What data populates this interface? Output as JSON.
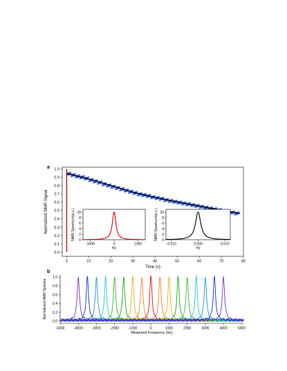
{
  "panel_a": {
    "letter": "a"
  },
  "panel_b": {
    "letter": "b"
  },
  "chart_data": [
    {
      "id": "decay",
      "type": "scatter",
      "xlabel": "Time (s)",
      "ylabel": "Normalized NMR Signal",
      "xlim": [
        -2,
        80
      ],
      "ylim": [
        -0.05,
        1.02
      ],
      "xticks": [
        0,
        10,
        20,
        30,
        40,
        50,
        60,
        70,
        80
      ],
      "yticks": [
        0.0,
        0.1,
        0.2,
        0.3,
        0.4,
        0.5,
        0.6,
        0.7,
        0.8,
        0.9,
        1.0
      ],
      "series": [
        {
          "color": "#1f4fe0",
          "kind": "scatter",
          "points": [
            [
              1,
              0.94
            ],
            [
              3,
              0.925
            ],
            [
              5,
              0.91
            ],
            [
              7,
              0.9
            ],
            [
              9,
              0.885
            ],
            [
              11,
              0.865
            ],
            [
              13,
              0.85
            ],
            [
              15,
              0.835
            ],
            [
              17,
              0.815
            ],
            [
              19,
              0.8
            ],
            [
              21,
              0.785
            ],
            [
              23,
              0.77
            ],
            [
              25,
              0.755
            ],
            [
              27,
              0.74
            ],
            [
              29,
              0.725
            ],
            [
              31,
              0.71
            ],
            [
              33,
              0.695
            ],
            [
              35,
              0.685
            ],
            [
              37,
              0.675
            ],
            [
              39,
              0.66
            ],
            [
              41,
              0.65
            ],
            [
              43,
              0.64
            ],
            [
              45,
              0.625
            ],
            [
              47,
              0.615
            ],
            [
              49,
              0.605
            ],
            [
              51,
              0.595
            ],
            [
              53,
              0.585
            ],
            [
              55,
              0.575
            ],
            [
              57,
              0.565
            ],
            [
              59,
              0.555
            ],
            [
              61,
              0.545
            ],
            [
              63,
              0.535
            ],
            [
              65,
              0.525
            ],
            [
              67,
              0.515
            ],
            [
              69,
              0.505
            ],
            [
              71,
              0.495
            ],
            [
              73,
              0.485
            ],
            [
              75,
              0.475
            ],
            [
              77,
              0.465
            ]
          ]
        },
        {
          "color": "#000000",
          "kind": "fit",
          "points": [
            [
              0,
              0.945
            ],
            [
              5,
              0.912
            ],
            [
              10,
              0.878
            ],
            [
              15,
              0.84
            ],
            [
              20,
              0.8
            ],
            [
              25,
              0.76
            ],
            [
              30,
              0.72
            ],
            [
              35,
              0.688
            ],
            [
              40,
              0.658
            ],
            [
              45,
              0.63
            ],
            [
              50,
              0.603
            ],
            [
              55,
              0.578
            ],
            [
              60,
              0.553
            ],
            [
              65,
              0.528
            ],
            [
              70,
              0.505
            ],
            [
              75,
              0.48
            ],
            [
              78.5,
              0.465
            ]
          ]
        },
        {
          "color": "#e00000",
          "kind": "pulse",
          "x": 0,
          "y": [
            0.0,
            1.0
          ]
        }
      ]
    },
    {
      "id": "inset_red",
      "type": "line",
      "xlabel": "Hz",
      "ylabel": "NMR Spectrum(a.u.)",
      "xlim": [
        -1300,
        1300
      ],
      "ylim": [
        0,
        11
      ],
      "xticks": [
        -1000,
        0,
        1000
      ],
      "yticks": [
        0,
        2,
        4,
        6,
        8,
        10
      ],
      "series": [
        {
          "color": "#e00000",
          "center": 0,
          "width": 90,
          "peak": 10
        }
      ]
    },
    {
      "id": "inset_black",
      "type": "line",
      "xlabel": "Hz",
      "ylabel": "NMR Spectrum(a.u.)",
      "xlim": [
        -0.012,
        0.012
      ],
      "ylim": [
        0,
        11
      ],
      "xticks": [
        -0.01,
        0.0,
        0.01
      ],
      "xticklabels": [
        "-0.010",
        "0.000",
        "0.010"
      ],
      "yticks": [
        0,
        2,
        4,
        6,
        8,
        10
      ],
      "series": [
        {
          "color": "#000000",
          "center": 0,
          "width": 0.0012,
          "peak": 10
        }
      ]
    },
    {
      "id": "spectra",
      "type": "line",
      "xlabel": "Measured Frequency (Hz)",
      "ylabel": "Normalized NMR Spectra",
      "xlim": [
        -5000,
        5100
      ],
      "ylim": [
        -0.05,
        1.05
      ],
      "xticks": [
        -5000,
        -4000,
        -3000,
        -2000,
        -1000,
        0,
        1000,
        2000,
        3000,
        4000,
        5000
      ],
      "yticks": [
        0.0,
        0.2,
        0.4,
        0.6,
        0.8,
        1.0
      ],
      "series": [
        {
          "center": -4000,
          "color": "#7a2fd0"
        },
        {
          "center": -3500,
          "color": "#1230d8"
        },
        {
          "center": -3000,
          "color": "#1e90e8"
        },
        {
          "center": -2500,
          "color": "#20c8d8"
        },
        {
          "center": -2000,
          "color": "#30b830"
        },
        {
          "center": -1500,
          "color": "#18a818"
        },
        {
          "center": -1000,
          "color": "#e8b020"
        },
        {
          "center": -500,
          "color": "#f08020"
        },
        {
          "center": 0,
          "color": "#e01010"
        },
        {
          "center": 500,
          "color": "#f08020"
        },
        {
          "center": 1000,
          "color": "#e8b020"
        },
        {
          "center": 1500,
          "color": "#18a818"
        },
        {
          "center": 2000,
          "color": "#30b830"
        },
        {
          "center": 2500,
          "color": "#20c8d8"
        },
        {
          "center": 3000,
          "color": "#1e90e8"
        },
        {
          "center": 3500,
          "color": "#1230d8"
        },
        {
          "center": 4000,
          "color": "#7a2fd0"
        }
      ],
      "peak_halfwidth_hz": 75
    }
  ]
}
